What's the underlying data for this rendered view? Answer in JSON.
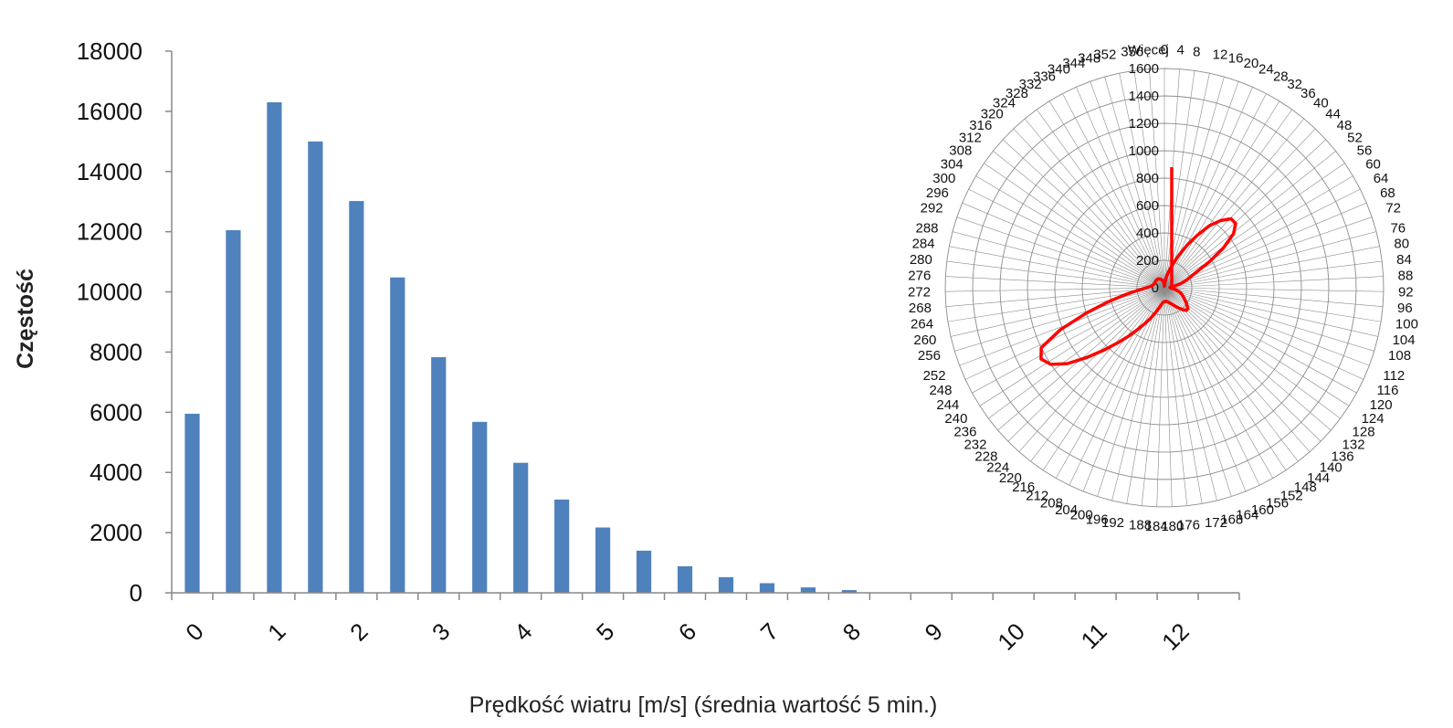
{
  "chart_data": [
    {
      "type": "bar",
      "xlabel": "Prędkość wiatru [m/s]  (średnia wartość 5 min.)",
      "ylabel": "Częstość",
      "ylim": [
        0,
        18000
      ],
      "yticks": [
        "0",
        "2000",
        "4000",
        "6000",
        "8000",
        "10000",
        "12000",
        "14000",
        "16000",
        "18000"
      ],
      "xticks": [
        "0",
        "1",
        "2",
        "3",
        "4",
        "5",
        "6",
        "7",
        "8",
        "9",
        "10",
        "11",
        "12"
      ],
      "bin_width": 0.5,
      "x": [
        0,
        0.5,
        1,
        1.5,
        2,
        2.5,
        3,
        3.5,
        4,
        4.5,
        5,
        5.5,
        6,
        6.5,
        7,
        7.5,
        8,
        8.5,
        9,
        9.5,
        10,
        10.5,
        11,
        11.5,
        12,
        12.5
      ],
      "values": [
        5950,
        12050,
        16300,
        15000,
        13020,
        10480,
        7830,
        5680,
        4320,
        3100,
        2170,
        1400,
        880,
        520,
        320,
        180,
        90,
        0,
        0,
        0,
        0,
        0,
        0,
        0,
        0,
        0
      ],
      "color": "#4f81bd",
      "grid": false,
      "legend": "none"
    },
    {
      "type": "radar",
      "radial_ticks": [
        "0",
        "200",
        "400",
        "600",
        "800",
        "1000",
        "1200",
        "1400",
        "1600"
      ],
      "rlim": [
        0,
        1600
      ],
      "angle_labels": [
        "0",
        "4",
        "8",
        "12",
        "16",
        "20",
        "24",
        "28",
        "32",
        "36",
        "40",
        "44",
        "48",
        "52",
        "56",
        "60",
        "64",
        "68",
        "72",
        "76",
        "80",
        "84",
        "88",
        "92",
        "96",
        "100",
        "104",
        "108",
        "112",
        "116",
        "120",
        "124",
        "128",
        "132",
        "136",
        "140",
        "144",
        "148",
        "152",
        "156",
        "160",
        "164",
        "168",
        "172",
        "176",
        "180",
        "184",
        "188",
        "192",
        "196",
        "200",
        "204",
        "208",
        "212",
        "216",
        "220",
        "224",
        "228",
        "232",
        "236",
        "240",
        "244",
        "248",
        "252",
        "256",
        "260",
        "264",
        "268",
        "272",
        "276",
        "280",
        "284",
        "288",
        "292",
        "296",
        "300",
        "304",
        "308",
        "312",
        "316",
        "320",
        "324",
        "328",
        "332",
        "336",
        "340",
        "344",
        "348",
        "352",
        "356",
        "Więcej"
      ],
      "series": [
        {
          "color": "#ff0000",
          "directions": [
            0,
            4,
            8,
            12,
            16,
            20,
            24,
            28,
            32,
            36,
            40,
            44,
            48,
            52,
            56,
            60,
            64,
            68,
            72,
            76,
            80,
            84,
            88,
            92,
            96,
            100,
            104,
            108,
            112,
            116,
            120,
            124,
            128,
            132,
            136,
            140,
            144,
            148,
            152,
            156,
            160,
            164,
            168,
            172,
            176,
            180,
            184,
            188,
            192,
            196,
            200,
            204,
            208,
            212,
            216,
            220,
            224,
            228,
            232,
            236,
            240,
            244,
            248,
            252,
            256,
            260,
            264,
            268,
            272,
            276,
            280,
            284,
            288,
            292,
            296,
            300,
            304,
            308,
            312,
            316,
            320,
            324,
            328,
            332,
            336,
            340,
            344,
            348,
            352,
            356
          ],
          "values": [
            10,
            30,
            60,
            95,
            135,
            190,
            260,
            350,
            450,
            560,
            640,
            700,
            700,
            640,
            520,
            380,
            260,
            200,
            160,
            120,
            80,
            50,
            40,
            45,
            60,
            85,
            105,
            125,
            140,
            155,
            170,
            190,
            210,
            230,
            230,
            210,
            185,
            165,
            145,
            130,
            120,
            110,
            105,
            100,
            100,
            100,
            105,
            115,
            135,
            160,
            195,
            240,
            290,
            350,
            430,
            520,
            630,
            760,
            900,
            1000,
            1040,
            1000,
            820,
            600,
            420,
            290,
            200,
            150,
            120,
            100,
            90,
            85,
            82,
            80,
            80,
            80,
            80,
            80,
            80,
            80,
            80,
            80,
            76,
            72,
            68,
            62,
            56,
            50,
            40,
            28
          ],
          "spike": {
            "direction": 0,
            "value": 880
          }
        }
      ]
    }
  ]
}
